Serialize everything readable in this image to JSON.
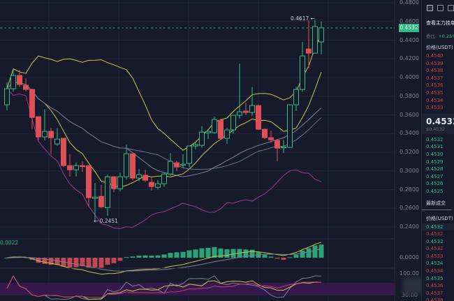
{
  "chart_data": {
    "type": "candlestick",
    "price_axis": [
      "0.4800",
      "0.4600",
      "0.4400",
      "0.4200",
      "0.4000",
      "0.3800",
      "0.3600",
      "0.3400",
      "0.3200",
      "0.3000",
      "0.2800",
      "0.2600",
      "0.2400"
    ],
    "ylim": [
      0.24,
      0.48
    ],
    "current_price": "0.4532",
    "high_label": "0.4617",
    "low_label": "0.2451",
    "indicator_value": "0.0022",
    "indicator_axis": {
      "zero": "0.0000",
      "top": "100.00",
      "bottom": "30.00"
    },
    "colors": {
      "up": "#2ebd85",
      "down": "#e04f58",
      "upper": "#c8c545",
      "mid": "#7a8099",
      "lower": "#a03690"
    },
    "candles": [
      [
        0.3708,
        0.388,
        0.395,
        0.365
      ],
      [
        0.388,
        0.4022,
        0.408,
        0.385
      ],
      [
        0.4022,
        0.3925,
        0.408,
        0.39
      ],
      [
        0.3917,
        0.3872,
        0.399,
        0.385
      ],
      [
        0.3872,
        0.3573,
        0.388,
        0.345
      ],
      [
        0.3581,
        0.3364,
        0.3581,
        0.333
      ],
      [
        0.3364,
        0.3424,
        0.366,
        0.333
      ],
      [
        0.3424,
        0.3356,
        0.346,
        0.318
      ],
      [
        0.3289,
        0.3341,
        0.346,
        0.327
      ],
      [
        0.3349,
        0.3057,
        0.3349,
        0.304
      ],
      [
        0.3057,
        0.3012,
        0.318,
        0.294
      ],
      [
        0.3012,
        0.3057,
        0.309,
        0.294
      ],
      [
        0.3057,
        0.305,
        0.31,
        0.299
      ],
      [
        0.3057,
        0.2713,
        0.3057,
        0.262
      ],
      [
        0.2706,
        0.272,
        0.287,
        0.2451
      ],
      [
        0.2728,
        0.2616,
        0.285,
        0.26
      ],
      [
        0.2608,
        0.2938,
        0.296,
        0.252
      ],
      [
        0.2938,
        0.281,
        0.2938,
        0.277
      ],
      [
        0.281,
        0.2938,
        0.298,
        0.278
      ],
      [
        0.2938,
        0.3184,
        0.328,
        0.291
      ],
      [
        0.3184,
        0.2923,
        0.3184,
        0.29
      ],
      [
        0.2923,
        0.296,
        0.302,
        0.289
      ],
      [
        0.2953,
        0.29,
        0.301,
        0.288
      ],
      [
        0.2878,
        0.2833,
        0.293,
        0.279
      ],
      [
        0.2825,
        0.2863,
        0.29,
        0.28
      ],
      [
        0.2863,
        0.2967,
        0.298,
        0.283
      ],
      [
        0.2967,
        0.3102,
        0.319,
        0.295
      ],
      [
        0.3087,
        0.3042,
        0.311,
        0.3
      ],
      [
        0.3065,
        0.3072,
        0.318,
        0.303
      ],
      [
        0.308,
        0.3267,
        0.327,
        0.304
      ],
      [
        0.3267,
        0.3282,
        0.33,
        0.323
      ],
      [
        0.3274,
        0.3416,
        0.348,
        0.325
      ],
      [
        0.3409,
        0.3424,
        0.344,
        0.334
      ],
      [
        0.3409,
        0.3551,
        0.358,
        0.34
      ],
      [
        0.3543,
        0.3349,
        0.356,
        0.334
      ],
      [
        0.3349,
        0.3439,
        0.346,
        0.329
      ],
      [
        0.3439,
        0.3596,
        0.36,
        0.34
      ],
      [
        0.3596,
        0.3633,
        0.415,
        0.356
      ],
      [
        0.3641,
        0.3626,
        0.373,
        0.36
      ],
      [
        0.3626,
        0.37,
        0.39,
        0.359
      ],
      [
        0.37,
        0.3446,
        0.371,
        0.344
      ],
      [
        0.3446,
        0.3356,
        0.3456,
        0.334
      ],
      [
        0.3356,
        0.3334,
        0.343,
        0.33
      ],
      [
        0.3326,
        0.3244,
        0.333,
        0.31
      ],
      [
        0.3252,
        0.3259,
        0.333,
        0.319
      ],
      [
        0.3252,
        0.3708,
        0.3708,
        0.325
      ],
      [
        0.3708,
        0.3872,
        0.39,
        0.364
      ],
      [
        0.3872,
        0.4231,
        0.438,
        0.385
      ],
      [
        0.4306,
        0.4261,
        0.4617,
        0.41
      ],
      [
        0.4261,
        0.4546,
        0.4617,
        0.426
      ],
      [
        0.4381,
        0.4532,
        0.46,
        0.425
      ]
    ]
  },
  "sidebar": {
    "title": "查看主力挂单",
    "ratio_label": "委比:",
    "ratio_value": "+0.25%",
    "price_header": "价格(USDT)",
    "asks": [
      "0.4540",
      "0.4539",
      "0.4538",
      "0.4537",
      "0.4536",
      "0.4535",
      "0.4534",
      "0.4533"
    ],
    "current": "0.4532",
    "current_usd": "$0.4532",
    "bids": [
      "0.4532",
      "0.4531",
      "0.4530",
      "0.4529",
      "0.4528",
      "0.4527",
      "0.4526",
      "0.4525"
    ],
    "latest_title": "最新成交",
    "trades_header": "价格(USDT)",
    "trades": [
      {
        "price": "0.4532",
        "side": "green"
      },
      {
        "price": "0.4532",
        "side": "red"
      },
      {
        "price": "0.4532",
        "side": "green"
      },
      {
        "price": "0.4532",
        "side": "red"
      },
      {
        "price": "0.4533",
        "side": "red"
      },
      {
        "price": "0.4534",
        "side": "green"
      },
      {
        "price": "0.4534",
        "side": "red"
      },
      {
        "price": "0.4535",
        "side": "green"
      },
      {
        "price": "0.4536",
        "side": "red"
      },
      {
        "price": "0.4537",
        "side": "red"
      },
      {
        "price": "0.4538",
        "side": "red"
      },
      {
        "price": "0.4540",
        "side": "green"
      }
    ]
  }
}
